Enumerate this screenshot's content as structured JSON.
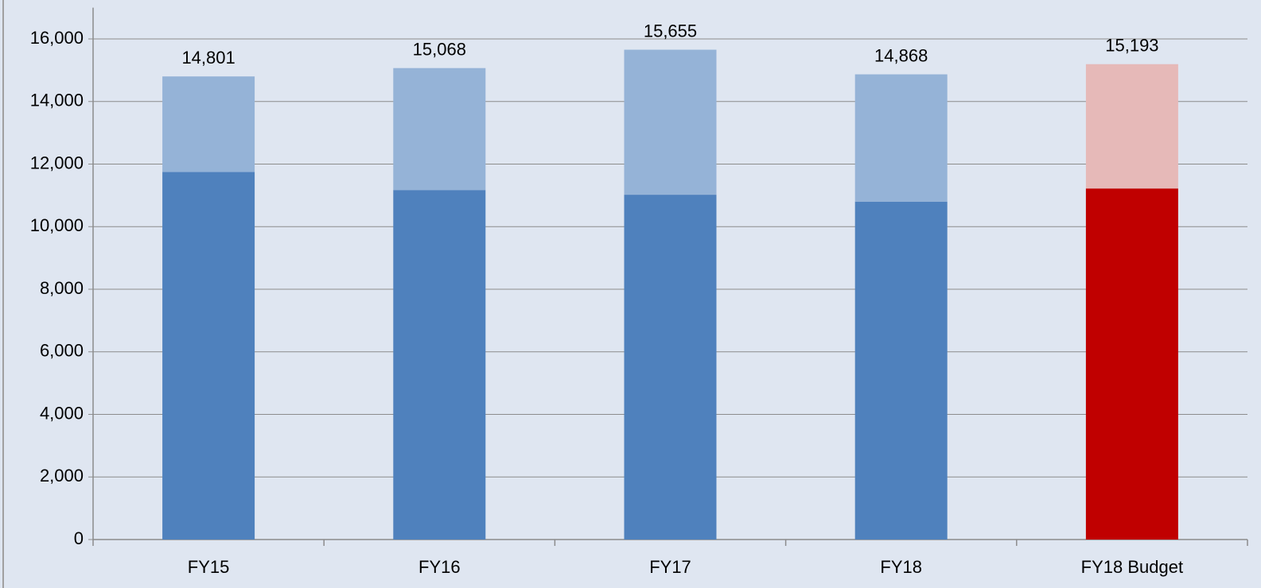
{
  "chart_data": {
    "type": "stacked-bar",
    "categories": [
      "FY15",
      "FY16",
      "FY17",
      "FY18",
      "FY18 Budget"
    ],
    "series": [
      {
        "colors": [
          "#4f81bd",
          "#4f81bd",
          "#4f81bd",
          "#4f81bd",
          "#c00000"
        ],
        "values": [
          11750,
          11170,
          11020,
          10800,
          11220
        ]
      },
      {
        "colors": [
          "#95b3d7",
          "#95b3d7",
          "#95b3d7",
          "#95b3d7",
          "#e6b9b8"
        ],
        "values": [
          3051,
          3898,
          4635,
          4068,
          3973
        ]
      }
    ],
    "totals": {
      "values": [
        14801,
        15068,
        15655,
        14868,
        15193
      ],
      "value_labels": [
        "14,801",
        "15,068",
        "15,655",
        "14,868",
        "15,193"
      ]
    },
    "ylim": [
      0,
      17000
    ],
    "yticks": [
      0,
      {
        "value": 2000,
        "label": "2,000"
      },
      {
        "value": 4000,
        "label": "4,000"
      },
      {
        "value": 6000,
        "label": "6,000"
      },
      {
        "value": 8000,
        "label": "8,000"
      },
      {
        "value": 10000,
        "label": "10,000"
      },
      {
        "value": 12000,
        "label": "12,000"
      },
      {
        "value": 14000,
        "label": "14,000"
      },
      {
        "value": 16000,
        "label": "16,000"
      }
    ],
    "grid": true
  }
}
